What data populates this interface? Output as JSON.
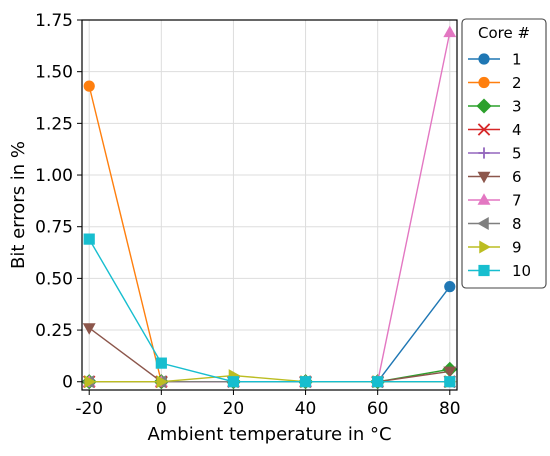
{
  "chart_data": {
    "type": "line",
    "title": "",
    "xlabel": "Ambient temperature in °C",
    "ylabel": "Bit errors in %",
    "x": [
      -20,
      0,
      20,
      40,
      60,
      80
    ],
    "x_ticks": [
      "-20",
      "0",
      "20",
      "40",
      "60",
      "80"
    ],
    "xlim": [
      -22,
      82
    ],
    "y_ticks": [
      "0",
      "0.25",
      "0.50",
      "0.75",
      "1.00",
      "1.25",
      "1.50",
      "1.75"
    ],
    "ylim": [
      -0.04,
      1.75
    ],
    "grid": true,
    "legend": {
      "title": "Core #",
      "position": "right"
    },
    "series": [
      {
        "name": "1",
        "color": "#1f77b4",
        "marker": "circle",
        "values": [
          0,
          0,
          0,
          0,
          0,
          0.46
        ]
      },
      {
        "name": "2",
        "color": "#ff7f0e",
        "marker": "circle",
        "values": [
          1.43,
          0,
          0,
          0,
          0,
          0
        ]
      },
      {
        "name": "3",
        "color": "#2ca02c",
        "marker": "diamond",
        "values": [
          0,
          0,
          0,
          0,
          0,
          0.06
        ]
      },
      {
        "name": "4",
        "color": "#d62728",
        "marker": "x",
        "values": [
          0,
          0,
          0,
          0,
          0,
          0
        ]
      },
      {
        "name": "5",
        "color": "#9467bd",
        "marker": "plus",
        "values": [
          0,
          0,
          0,
          0,
          0,
          0
        ]
      },
      {
        "name": "6",
        "color": "#8c564b",
        "marker": "triangle-down",
        "values": [
          0.26,
          0,
          0,
          0,
          0,
          0.05
        ]
      },
      {
        "name": "7",
        "color": "#e377c2",
        "marker": "triangle-up",
        "values": [
          0,
          0,
          0,
          0,
          0,
          1.69
        ]
      },
      {
        "name": "8",
        "color": "#7f7f7f",
        "marker": "triangle-left",
        "values": [
          0,
          0,
          0,
          0,
          0,
          0
        ]
      },
      {
        "name": "9",
        "color": "#bcbd22",
        "marker": "triangle-right",
        "values": [
          0,
          0,
          0.03,
          0,
          0,
          0
        ]
      },
      {
        "name": "10",
        "color": "#17becf",
        "marker": "square",
        "values": [
          0.69,
          0.09,
          0,
          0,
          0,
          0
        ]
      }
    ]
  }
}
